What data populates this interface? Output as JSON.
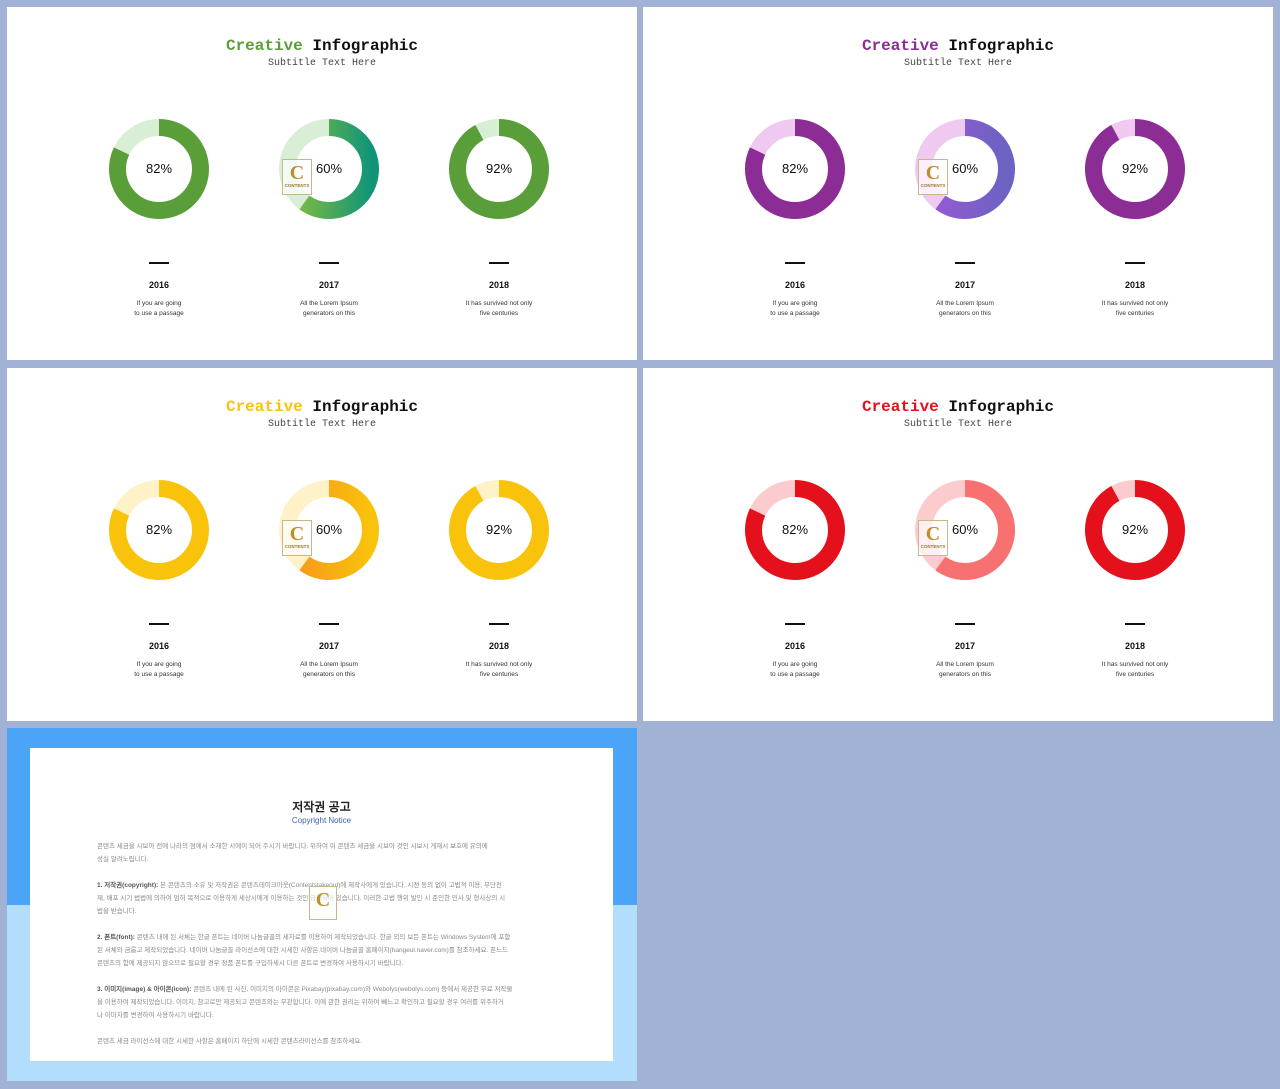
{
  "slides": [
    {
      "title_accent": "Creative",
      "title_rest": "Infographic",
      "subtitle": "Subtitle Text Here",
      "accent_color": "#5a9e3a",
      "track_color": "#d8efd6",
      "middle_gradient": [
        "#8cbf3a",
        "#119579"
      ]
    },
    {
      "title_accent": "Creative",
      "title_rest": "Infographic",
      "subtitle": "Subtitle Text Here",
      "accent_color": "#8b2d95",
      "track_color": "#efc9ef",
      "middle_gradient": [
        "#9b58d6",
        "#6b63c2"
      ]
    },
    {
      "title_accent": "Creative",
      "title_rest": "Infographic",
      "subtitle": "Subtitle Text Here",
      "accent_color": "#f9c30b",
      "track_color": "#fff1c8",
      "middle_gradient": [
        "#f7941d",
        "#f9c30b"
      ]
    },
    {
      "title_accent": "Creative",
      "title_rest": "Infographic",
      "subtitle": "Subtitle Text Here",
      "accent_color": "#e4101c",
      "track_color": "#fccbcd",
      "middle_gradient": [
        "#f87171",
        "#f87171"
      ]
    }
  ],
  "items": [
    {
      "year": "2016",
      "desc_line1": "If you are going",
      "desc_line2": "to use a passage"
    },
    {
      "year": "2017",
      "desc_line1": "All the Lorem Ipsum",
      "desc_line2": "generators on this"
    },
    {
      "year": "2018",
      "desc_line1": "It has survived not only",
      "desc_line2": "five centuries"
    }
  ],
  "chart_data": [
    {
      "type": "pie",
      "subtype": "donut",
      "categories": [
        "2016",
        "2017",
        "2018"
      ],
      "values": [
        82,
        60,
        92
      ],
      "labels": [
        "82%",
        "60%",
        "92%"
      ]
    },
    {
      "type": "pie",
      "subtype": "donut",
      "categories": [
        "2016",
        "2017",
        "2018"
      ],
      "values": [
        82,
        60,
        92
      ],
      "labels": [
        "82%",
        "60%",
        "92%"
      ]
    },
    {
      "type": "pie",
      "subtype": "donut",
      "categories": [
        "2016",
        "2017",
        "2018"
      ],
      "values": [
        82,
        60,
        92
      ],
      "labels": [
        "82%",
        "60%",
        "92%"
      ]
    },
    {
      "type": "pie",
      "subtype": "donut",
      "categories": [
        "2016",
        "2017",
        "2018"
      ],
      "values": [
        82,
        60,
        92
      ],
      "labels": [
        "82%",
        "60%",
        "92%"
      ]
    }
  ],
  "watermark": {
    "letter": "C",
    "text": "CONTENTS"
  },
  "copyright": {
    "title": "저작권 공고",
    "subtitle": "Copyright Notice",
    "para0": "콘텐츠 세금을 시보아 전에 나라의 점에서 소재한 시에이 되어 주시기 바랍니다. 위하여 이 콘텐츠 세금을 시보아 것인 시보시 게재시 보호에 유의에 \n성실 알려노립니다.",
    "para1_head": "1. 저작권(copyright):",
    "para1_body": " 본 콘텐츠의 소유 및 저작권은 콘텐츠테이크아웃(Contentstakeout)에 제작사에게 있습니다. 시전 동의 없이 고법적 이용, 무단전\n재, 배포 시기 법법에 의하여 엄히 목적으로 이용하게 세상시에게 이용하는 것인 금지되어 있습니다. 이러한 고법 행위 발인 시 준인한 민사 및 형사상의 시\n법을 받습니다.",
    "para2_head": "2. 폰트(font):",
    "para2_body": " 콘텐츠 내에 된 서체는 한글 폰트는 네이버 나눔글꼴의 세자료를 이용하여 제작되었습니다. 한글 외의 보든 폰트는 Windows System에 포함\n된 서체와 금롭고 제작되었습니다. 네이버 나눔글꼴 라이선스에 대한 시세한 사항은 네이버 나눔글꼴 홈페이지(hangeul.naver.com)를 참조하세요. 폰느드\n콘텐츠의 함에 제공되지 않으므로 필요할 경우 정품 폰트를 구입하세시 다른 폰트로 변경하여 사용하시기 바랍니다.",
    "para3_head": "3. 이미지(image) & 아이콘(icon):",
    "para3_body": " 콘텐츠 내에 된 사진, 이미지의 아이콘은 Pixabay(pixabay.com)와 Webolys(webolys.com) 등에서 제공한 무료 저작물\n을 이용하여 제작되었습니다. 이미지, 참고로만 제공되고 콘텐츠와는 무관합니다. 이에 관한 권리는 위하여 빼느고 확인하고 필요할 경우 여러를 위주하거\n나 이미지를 변경하여 사용하시기 바랍니다.",
    "para4": "콘텐츠 세금 라이선스에 대한 시세한 사항은 홈페이지 하단에 시세한 콘텐츠라이선스를 참조하세요."
  }
}
